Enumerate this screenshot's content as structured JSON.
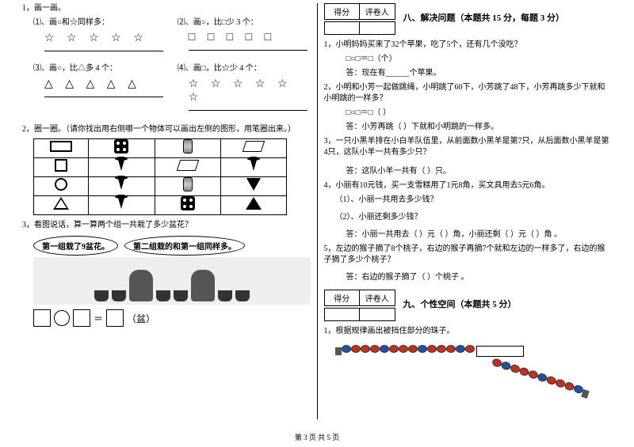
{
  "footer": "第 3 页  共 5 页",
  "left": {
    "q1": {
      "title": "1，画一画。",
      "sub1": {
        "label": "⑴、画○和☆同样多：",
        "shapes": "☆ ☆ ☆ ☆ ☆"
      },
      "sub2": {
        "label": "⑵、画○，比□少 3 个：",
        "shapes": "□ □ □ □ □"
      },
      "sub3": {
        "label": "⑶、画○，比△多 4 个：",
        "shapes": "△ △ △ △ △"
      },
      "sub4": {
        "label": "⑷、画□，比☆少 4 个：",
        "shapes": "☆ ☆ ☆ ☆ ☆ ☆"
      }
    },
    "q2": {
      "title": "2，圈一圈。（请你找出用右侧哪一个物体可以画出左侧的图形，用笔圈出来。）"
    },
    "q3": {
      "title": "3，看图说话，算一算两个组一共栽了多少盆花？",
      "bubble1": "第一组栽了9盆花。",
      "bubble2": "第二组栽的和第一组同样多。",
      "unit": "（盆）"
    }
  },
  "right": {
    "score_label1": "得分",
    "score_label2": "评卷人",
    "sec8": {
      "title": "八、解决问题（本题共 15 分，每题 3 分）",
      "q1": {
        "text": "1，小明妈妈买来了32个苹果，吃了5个，还有几个没吃？",
        "eq": "□○□＝□（个）",
        "ans": "答：现在有______个苹果。"
      },
      "q2": {
        "text": "2，小明和小芳一起做跳绳，小明跳了60下，小芳跳了48下，小芳再跳多少下就和小明跳的一样多？",
        "eq": "□○□＝□（  ）",
        "ans": "答：小芳再跳（   ）下就和小明跳的一样多。"
      },
      "q3": {
        "text": "3，一只小黑羊排在小白羊队伍里，从前面数小黑羊是第7只，从后面数小黑羊是第4只，这队小羊一共有多少只？",
        "ans": "答：这队小羊一共有（   ）只。"
      },
      "q4": {
        "text": "4，小丽有10元钱，买一支雪糕用了1元8角，买文具用去5元6角。",
        "p1": "（1）、小丽一共用去多少钱？",
        "p2": "（2）、小丽还剩多少钱？",
        "ans": "答：小丽一共用去（  ）元（  ）角，小丽还剩（  ）元（  ）角 。"
      },
      "q5": {
        "text": "5，左边的猴子摘了8个桃子，右边的猴子再摘7个就和左边的一样多了，右边的猴子摘了多少个桃子？",
        "ans": "答：右边的猴子摘了（   ）个桃子 。"
      }
    },
    "sec9": {
      "title": "九、个性空间（本题共 5 分）",
      "q1": "1，根据规律画出被挡住部分的珠子。"
    }
  },
  "beads": {
    "colors1": [
      "blue",
      "red",
      "red",
      "red",
      "blue",
      "red",
      "red",
      "red",
      "blue",
      "red",
      "red",
      "red",
      "blue",
      "red"
    ],
    "colors2": [
      "red",
      "blue",
      "red",
      "red",
      "red",
      "blue",
      "red",
      "red",
      "red",
      "blue"
    ]
  }
}
